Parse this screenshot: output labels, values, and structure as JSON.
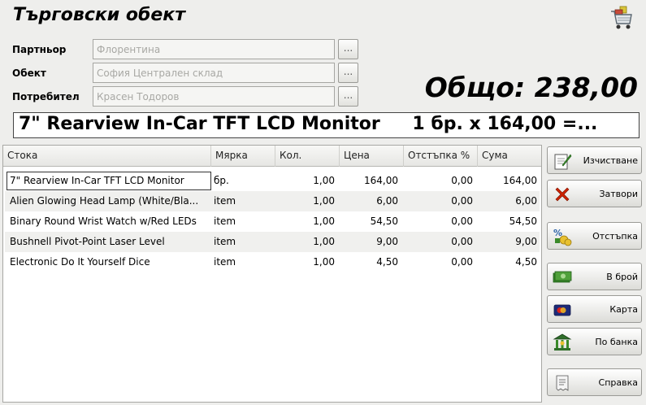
{
  "window": {
    "title": "Търговски обект"
  },
  "fields": [
    {
      "label": "Партньор",
      "value": "Флорентина",
      "button": "..."
    },
    {
      "label": "Обект",
      "value": "София Централен склад",
      "button": "..."
    },
    {
      "label": "Потребител",
      "value": "Красен Тодоров",
      "button": "..."
    }
  ],
  "total": {
    "text": "Общо: 238,00"
  },
  "display": {
    "item": "7\" Rearview In-Car TFT LCD Monitor",
    "qty_text": "1 бр. x 164,00 =..."
  },
  "table": {
    "columns": [
      "Стока",
      "Мярка",
      "Кол.",
      "Цена",
      "Отстъпка %",
      "Сума"
    ],
    "rows": [
      [
        "7\" Rearview In-Car TFT LCD Monitor",
        "бр.",
        "1,00",
        "164,00",
        "0,00",
        "164,00"
      ],
      [
        "Alien Glowing Head Lamp (White/Bla...",
        "item",
        "1,00",
        "6,00",
        "0,00",
        "6,00"
      ],
      [
        "Binary Round Wrist Watch w/Red LEDs",
        "item",
        "1,00",
        "54,50",
        "0,00",
        "54,50"
      ],
      [
        "Bushnell Pivot-Point Laser Level",
        "item",
        "1,00",
        "9,00",
        "0,00",
        "9,00"
      ],
      [
        "Electronic Do It Yourself Dice",
        "item",
        "1,00",
        "4,50",
        "0,00",
        "4,50"
      ]
    ]
  },
  "side_buttons": {
    "clear": {
      "label": "Изчистване",
      "icon": "clear-icon"
    },
    "close": {
      "label": "Затвори",
      "icon": "close-x-icon"
    },
    "discount": {
      "label": "Отстъпка",
      "icon": "discount-icon"
    },
    "cash": {
      "label": "В брой",
      "icon": "cash-icon"
    },
    "card": {
      "label": "Карта",
      "icon": "card-icon"
    },
    "bank": {
      "label": "По банка",
      "icon": "bank-icon"
    },
    "receipt": {
      "label": "Справка",
      "icon": "receipt-icon"
    }
  },
  "colors": {
    "close_x": "#cc2200",
    "cash_green": "#3a8a2a",
    "bank_green": "#2f6e2a"
  }
}
